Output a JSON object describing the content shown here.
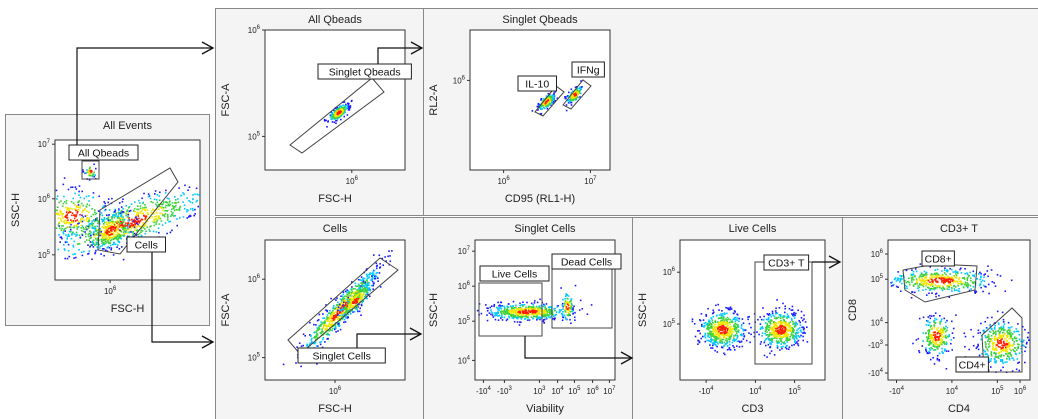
{
  "chart_data": [
    {
      "type": "scatter",
      "title": "All Events",
      "xlabel": "FSC-H",
      "ylabel": "SSC-H",
      "x_scale": "log",
      "y_scale": "log",
      "x_ticks": [
        "10^6"
      ],
      "y_ticks": [
        "10^7",
        "10^6",
        "10^5"
      ],
      "gates": [
        {
          "label": "All Qbeads",
          "shape": "rectangle"
        },
        {
          "label": "Cells",
          "shape": "polygon"
        }
      ]
    },
    {
      "type": "scatter",
      "title": "All Qbeads",
      "xlabel": "FSC-H",
      "ylabel": "FSC-A",
      "x_scale": "log",
      "y_scale": "log",
      "x_ticks": [
        "10^6"
      ],
      "y_ticks": [
        "10^6",
        "10^5"
      ],
      "gates": [
        {
          "label": "Singlet Qbeads",
          "shape": "polygon"
        }
      ]
    },
    {
      "type": "scatter",
      "title": "Singlet Qbeads",
      "xlabel": "CD95 (RL1-H)",
      "ylabel": "RL2-A",
      "x_scale": "log",
      "y_scale": "log",
      "x_ticks": [
        "10^6",
        "10^7"
      ],
      "y_ticks": [
        "10^6"
      ],
      "gates": [
        {
          "label": "IL-10",
          "shape": "polygon"
        },
        {
          "label": "IFNg",
          "shape": "polygon"
        }
      ]
    },
    {
      "type": "scatter",
      "title": "Cells",
      "xlabel": "FSC-H",
      "ylabel": "FSC-A",
      "x_scale": "log",
      "y_scale": "log",
      "x_ticks": [
        "10^6"
      ],
      "y_ticks": [
        "10^6",
        "10^5"
      ],
      "gates": [
        {
          "label": "Singlet Cells",
          "shape": "polygon"
        }
      ]
    },
    {
      "type": "scatter",
      "title": "Singlet Cells",
      "xlabel": "Viability",
      "ylabel": "SSC-H",
      "x_scale": "biexponential",
      "y_scale": "log",
      "x_ticks": [
        "-10^4",
        "-10^3",
        "10^3",
        "10^4",
        "10^5",
        "10^6",
        "10^7"
      ],
      "y_ticks": [
        "10^7",
        "10^6",
        "10^5",
        "10^4"
      ],
      "gates": [
        {
          "label": "Live Cells",
          "shape": "rectangle"
        },
        {
          "label": "Dead Cells",
          "shape": "rectangle"
        }
      ]
    },
    {
      "type": "scatter",
      "title": "Live Cells",
      "xlabel": "CD3",
      "ylabel": "SSC-H",
      "x_scale": "biexponential",
      "y_scale": "log",
      "x_ticks": [
        "-10^4",
        "10^4",
        "10^5"
      ],
      "y_ticks": [
        "10^6",
        "10^5"
      ],
      "gates": [
        {
          "label": "CD3+ T",
          "shape": "rectangle"
        }
      ]
    },
    {
      "type": "scatter",
      "title": "CD3+ T",
      "xlabel": "CD4",
      "ylabel": "CD8",
      "x_scale": "biexponential",
      "y_scale": "biexponential",
      "x_ticks": [
        "-10^4",
        "10^4",
        "10^5",
        "10^6"
      ],
      "y_ticks": [
        "10^6",
        "10^5",
        "10^4",
        "-10^3",
        "-10^4"
      ],
      "gates": [
        {
          "label": "CD8+",
          "shape": "polygon"
        },
        {
          "label": "CD4+",
          "shape": "polygon"
        }
      ]
    }
  ],
  "colors": {
    "density_low": "#1a1aff",
    "density_mid_low": "#00c8ff",
    "density_mid": "#3cd23c",
    "density_mid_high": "#f0e600",
    "density_high": "#ff1e00",
    "panel_border": "#888888",
    "gate_line": "#444444",
    "arrow": "#111111"
  }
}
